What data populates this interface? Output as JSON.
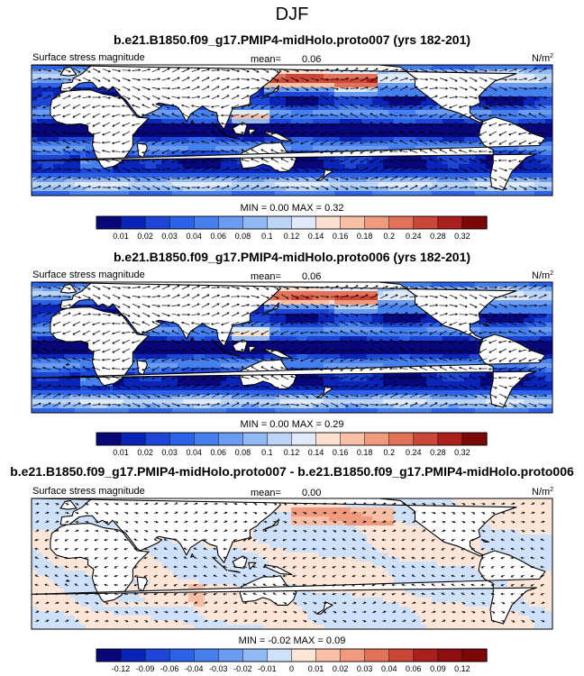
{
  "figure": {
    "title": "DJF",
    "land_color": "#ffffff",
    "coast_color": "#000000"
  },
  "chart_data": [
    {
      "type": "heatmap",
      "title": "b.e21.B1850.f09_g17.PMIP4-midHolo.proto007 (yrs 182-201)",
      "left_label": "Surface stress magnitude",
      "mean_label": "mean=",
      "mean_value": "0.06",
      "units": "N/m",
      "units_sup": "2",
      "min_label": "MIN =",
      "min_value": "0.00",
      "max_label": "MAX =",
      "max_value": "0.32",
      "field": "wind_stress",
      "intensity": 1.0,
      "colorbar": {
        "labels": [
          "0.01",
          "0.02",
          "0.03",
          "0.04",
          "0.06",
          "0.08",
          "0.1",
          "0.12",
          "0.14",
          "0.16",
          "0.18",
          "0.2",
          "0.24",
          "0.28",
          "0.32"
        ],
        "colors": [
          "#07077a",
          "#0a24b8",
          "#1d46d6",
          "#2c62e8",
          "#4680ee",
          "#6c9cf2",
          "#93b9f4",
          "#bcd5f7",
          "#dfeafb",
          "#fde0cf",
          "#f8bfa6",
          "#f09b7e",
          "#e2735a",
          "#cd4738",
          "#ab1f1d",
          "#7c0707"
        ]
      }
    },
    {
      "type": "heatmap",
      "title": "b.e21.B1850.f09_g17.PMIP4-midHolo.proto006 (yrs 182-201)",
      "left_label": "Surface stress magnitude",
      "mean_label": "mean=",
      "mean_value": "0.06",
      "units": "N/m",
      "units_sup": "2",
      "min_label": "MIN =",
      "min_value": "0.00",
      "max_label": "MAX =",
      "max_value": "0.29",
      "field": "wind_stress",
      "intensity": 0.96,
      "colorbar": {
        "labels": [
          "0.01",
          "0.02",
          "0.03",
          "0.04",
          "0.06",
          "0.08",
          "0.1",
          "0.12",
          "0.14",
          "0.16",
          "0.18",
          "0.2",
          "0.24",
          "0.28",
          "0.32"
        ],
        "colors": [
          "#07077a",
          "#0a24b8",
          "#1d46d6",
          "#2c62e8",
          "#4680ee",
          "#6c9cf2",
          "#93b9f4",
          "#bcd5f7",
          "#dfeafb",
          "#fde0cf",
          "#f8bfa6",
          "#f09b7e",
          "#e2735a",
          "#cd4738",
          "#ab1f1d",
          "#7c0707"
        ]
      }
    },
    {
      "type": "heatmap",
      "title": "b.e21.B1850.f09_g17.PMIP4-midHolo.proto007 - b.e21.B1850.f09_g17.PMIP4-midHolo.proto006",
      "left_label": "Surface stress magnitude",
      "mean_label": "mean=",
      "mean_value": "0.00",
      "units": "N/m",
      "units_sup": "2",
      "min_label": "MIN =",
      "min_value": "-0.02",
      "max_label": "MAX =",
      "max_value": "0.09",
      "field": "difference",
      "intensity": 1.0,
      "colorbar": {
        "labels": [
          "-0.12",
          "-0.09",
          "-0.06",
          "-0.04",
          "-0.03",
          "-0.02",
          "-0.01",
          "0",
          "0.01",
          "0.02",
          "0.03",
          "0.04",
          "0.06",
          "0.09",
          "0.12"
        ],
        "colors": [
          "#07077a",
          "#0a24b8",
          "#1d46d6",
          "#2c62e8",
          "#4680ee",
          "#6c9cf2",
          "#93b9f4",
          "#cfe0fa",
          "#fde6d8",
          "#f8bfa6",
          "#f09b7e",
          "#e2735a",
          "#cd4738",
          "#ab1f1d",
          "#8f1010",
          "#7c0707"
        ]
      }
    }
  ]
}
